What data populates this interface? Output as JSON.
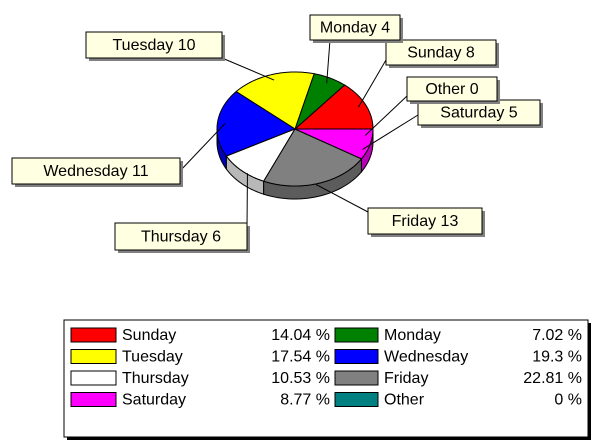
{
  "chart_data": {
    "type": "pie",
    "categories": [
      "Sunday",
      "Monday",
      "Tuesday",
      "Wednesday",
      "Thursday",
      "Friday",
      "Saturday",
      "Other"
    ],
    "values": [
      8,
      4,
      10,
      11,
      6,
      13,
      5,
      0
    ],
    "colors": [
      "#ff0000",
      "#008000",
      "#ffff00",
      "#0000ff",
      "#ffffff",
      "#808080",
      "#ff00ff",
      "#008080"
    ],
    "percent_labels": [
      "14.04 %",
      "7.02 %",
      "17.54 %",
      "19.3 %",
      "10.53 %",
      "22.81 %",
      "8.77 %",
      "0 %"
    ],
    "legend": true
  }
}
